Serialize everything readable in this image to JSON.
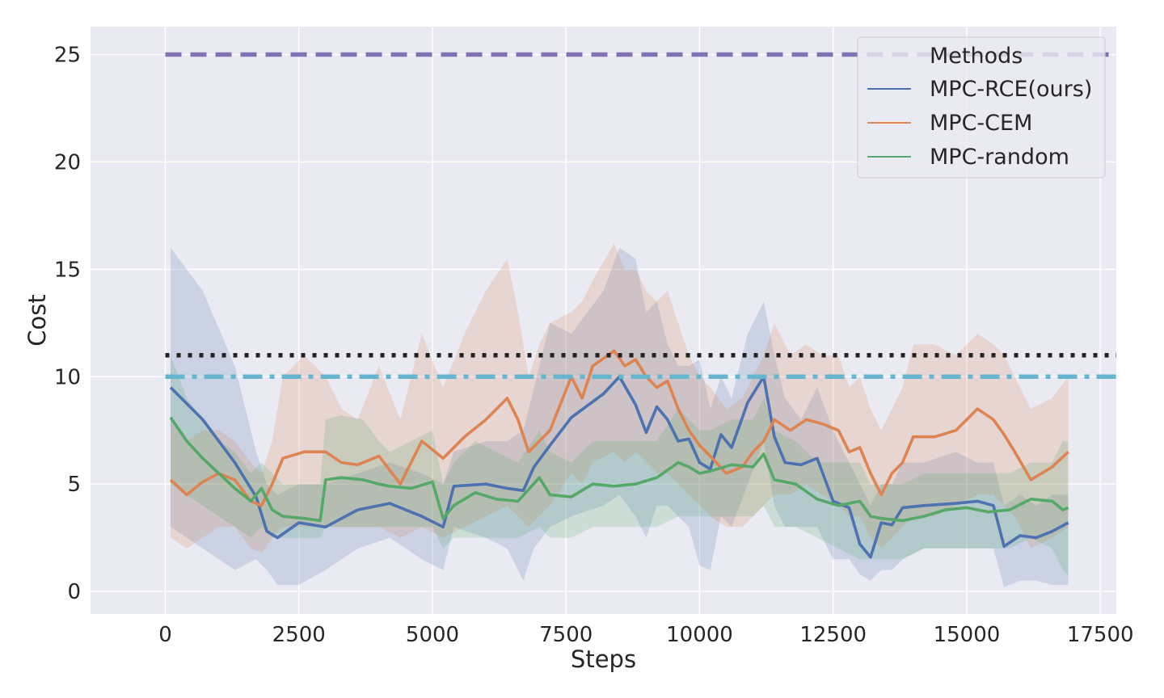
{
  "chart_data": {
    "type": "line",
    "xlabel": "Steps",
    "ylabel": "Cost",
    "xlim": [
      -1400,
      17800
    ],
    "ylim": [
      -1.05,
      26.3
    ],
    "xticks": [
      0,
      2500,
      5000,
      7500,
      10000,
      12500,
      15000,
      17500
    ],
    "yticks": [
      0,
      5,
      10,
      15,
      20,
      25
    ],
    "grid": true,
    "legend": {
      "title": "Methods",
      "placement": "top-right"
    },
    "colors": {
      "background": "#eaeaf2",
      "grid": "#ffffff",
      "MPC-RCE(ours)": "#4c72b0",
      "MPC-CEM": "#dd8452",
      "MPC-random": "#55a868",
      "dashed": "#8172b3",
      "dotted": "#222222",
      "dashdot": "#64b5cd"
    },
    "reference_lines": [
      {
        "y": 25,
        "style": "dashed",
        "color": "#8172b3"
      },
      {
        "y": 11,
        "style": "dotted",
        "color": "#222222"
      },
      {
        "y": 10,
        "style": "dashdot",
        "color": "#64b5cd"
      }
    ],
    "series": [
      {
        "name": "MPC-RCE(ours)",
        "color": "#4c72b0",
        "x": [
          100,
          700,
          1300,
          1700,
          1900,
          2100,
          2500,
          3000,
          3600,
          4200,
          4800,
          5200,
          5400,
          6000,
          6400,
          6700,
          6900,
          7200,
          7600,
          8200,
          8500,
          8800,
          9000,
          9200,
          9400,
          9600,
          9800,
          10000,
          10200,
          10400,
          10600,
          10900,
          11200,
          11400,
          11600,
          11900,
          12200,
          12500,
          12800,
          13000,
          13200,
          13400,
          13600,
          13800,
          14200,
          14800,
          15200,
          15500,
          15700,
          16000,
          16300,
          16600,
          16900
        ],
        "mean": [
          9.5,
          8.0,
          6.0,
          4.4,
          2.8,
          2.5,
          3.2,
          3.0,
          3.8,
          4.1,
          3.5,
          3.0,
          4.9,
          5.0,
          4.8,
          4.7,
          5.8,
          6.8,
          8.1,
          9.2,
          10.0,
          8.7,
          7.4,
          8.6,
          8.0,
          7.0,
          7.1,
          6.0,
          5.7,
          7.3,
          6.7,
          8.8,
          10.0,
          7.2,
          6.0,
          5.9,
          6.2,
          4.2,
          3.9,
          2.2,
          1.6,
          3.2,
          3.1,
          3.9,
          4.0,
          4.1,
          4.2,
          4.0,
          2.1,
          2.6,
          2.5,
          2.8,
          3.2
        ],
        "upper": [
          16.0,
          14.0,
          10.5,
          6.5,
          5.0,
          4.5,
          5.0,
          5.0,
          5.5,
          6.0,
          5.5,
          5.0,
          6.5,
          7.0,
          7.0,
          7.5,
          9.5,
          12.5,
          12.0,
          14.0,
          16.0,
          15.5,
          13.0,
          13.5,
          11.5,
          10.5,
          10.5,
          10.8,
          8.5,
          10.0,
          9.0,
          12.0,
          13.5,
          11.0,
          9.0,
          8.0,
          9.5,
          7.5,
          6.0,
          5.0,
          4.0,
          5.0,
          5.0,
          6.0,
          6.0,
          6.5,
          6.0,
          6.0,
          4.0,
          4.5,
          4.0,
          4.5,
          4.5
        ],
        "lower": [
          3.0,
          2.0,
          1.0,
          1.5,
          1.0,
          0.3,
          0.3,
          1.0,
          2.0,
          2.5,
          1.5,
          1.0,
          3.0,
          2.5,
          2.0,
          0.5,
          2.0,
          3.0,
          3.5,
          4.0,
          4.5,
          3.5,
          2.5,
          4.0,
          4.0,
          3.5,
          3.0,
          1.2,
          1.0,
          3.5,
          3.0,
          5.0,
          7.0,
          4.0,
          3.0,
          3.0,
          3.0,
          1.5,
          1.5,
          0.8,
          0.5,
          1.0,
          1.0,
          1.5,
          2.0,
          2.0,
          2.0,
          2.0,
          0.2,
          0.5,
          0.5,
          0.3,
          0.3
        ]
      },
      {
        "name": "MPC-CEM",
        "color": "#dd8452",
        "x": [
          100,
          400,
          700,
          1000,
          1300,
          1600,
          1800,
          2000,
          2200,
          2600,
          3000,
          3300,
          3600,
          4000,
          4400,
          4800,
          5200,
          5600,
          6000,
          6400,
          6600,
          6800,
          7000,
          7200,
          7600,
          7800,
          8000,
          8400,
          8600,
          8800,
          9000,
          9200,
          9400,
          9600,
          9800,
          10000,
          10200,
          10500,
          10800,
          11000,
          11200,
          11400,
          11700,
          12000,
          12300,
          12600,
          12800,
          13000,
          13200,
          13400,
          13600,
          13800,
          14000,
          14400,
          14800,
          15200,
          15500,
          15700,
          15900,
          16200,
          16600,
          16900
        ],
        "mean": [
          5.2,
          4.5,
          5.1,
          5.5,
          5.2,
          4.2,
          4.0,
          5.0,
          6.2,
          6.5,
          6.5,
          6.0,
          5.9,
          6.3,
          5.0,
          7.0,
          6.2,
          7.2,
          8.0,
          9.0,
          8.0,
          6.5,
          7.0,
          7.5,
          10.0,
          9.0,
          10.5,
          11.2,
          10.5,
          10.8,
          10.0,
          9.5,
          9.8,
          8.5,
          7.5,
          6.8,
          6.3,
          5.5,
          5.8,
          6.5,
          7.0,
          8.0,
          7.5,
          8.0,
          7.8,
          7.5,
          6.5,
          6.7,
          5.5,
          4.5,
          5.5,
          6.0,
          7.2,
          7.2,
          7.5,
          8.5,
          8.0,
          7.3,
          6.5,
          5.2,
          5.8,
          6.5
        ],
        "upper": [
          8.0,
          7.0,
          7.5,
          7.5,
          7.0,
          6.0,
          5.5,
          7.0,
          10.0,
          11.0,
          10.0,
          8.5,
          8.0,
          10.5,
          8.0,
          12.0,
          9.5,
          12.0,
          14.0,
          15.5,
          13.0,
          10.0,
          11.5,
          12.5,
          13.0,
          13.5,
          14.5,
          16.2,
          15.0,
          15.0,
          14.0,
          13.5,
          14.0,
          12.5,
          11.0,
          10.0,
          9.5,
          8.5,
          9.0,
          10.0,
          11.0,
          12.5,
          11.0,
          11.5,
          11.0,
          11.0,
          9.5,
          10.0,
          8.5,
          7.5,
          8.5,
          9.5,
          11.5,
          11.5,
          11.0,
          12.0,
          11.5,
          11.0,
          10.0,
          8.5,
          9.0,
          10.0
        ],
        "lower": [
          2.5,
          2.0,
          2.5,
          3.0,
          3.0,
          2.0,
          1.8,
          2.5,
          3.0,
          3.0,
          3.0,
          3.0,
          3.0,
          3.0,
          2.5,
          3.0,
          2.5,
          3.0,
          3.5,
          4.0,
          3.5,
          3.0,
          3.5,
          4.0,
          5.5,
          5.0,
          6.0,
          6.5,
          6.0,
          6.5,
          6.0,
          5.5,
          5.5,
          5.0,
          4.5,
          4.0,
          3.5,
          3.0,
          3.0,
          3.5,
          4.0,
          4.5,
          4.5,
          5.0,
          4.5,
          4.0,
          3.5,
          3.5,
          2.5,
          2.0,
          2.5,
          3.0,
          3.5,
          3.5,
          4.0,
          4.5,
          4.5,
          4.0,
          3.5,
          2.0,
          2.5,
          3.0
        ]
      },
      {
        "name": "MPC-random",
        "color": "#55a868",
        "x": [
          100,
          400,
          700,
          1000,
          1300,
          1600,
          1800,
          2000,
          2200,
          2600,
          2900,
          3000,
          3300,
          3700,
          4000,
          4200,
          4600,
          5000,
          5200,
          5400,
          5800,
          6200,
          6600,
          7000,
          7200,
          7600,
          8000,
          8400,
          8800,
          9200,
          9600,
          9800,
          10000,
          10200,
          10600,
          11000,
          11200,
          11400,
          11800,
          12200,
          12600,
          13000,
          13200,
          13400,
          13800,
          14200,
          14600,
          15000,
          15400,
          15800,
          16200,
          16600,
          16800,
          16900
        ],
        "mean": [
          8.1,
          7.0,
          6.2,
          5.5,
          4.8,
          4.2,
          4.8,
          3.8,
          3.5,
          3.4,
          3.3,
          5.2,
          5.3,
          5.2,
          5.0,
          4.9,
          4.8,
          5.1,
          3.4,
          4.0,
          4.6,
          4.3,
          4.2,
          5.3,
          4.5,
          4.4,
          5.0,
          4.9,
          5.0,
          5.3,
          6.0,
          5.8,
          5.5,
          5.6,
          5.9,
          5.8,
          6.4,
          5.2,
          5.0,
          4.3,
          4.0,
          4.2,
          3.5,
          3.4,
          3.3,
          3.5,
          3.8,
          3.9,
          3.7,
          3.8,
          4.3,
          4.2,
          3.8,
          3.9
        ],
        "upper": [
          11.0,
          9.0,
          8.0,
          7.0,
          6.5,
          5.5,
          6.0,
          5.5,
          5.0,
          5.0,
          5.0,
          8.0,
          8.2,
          8.0,
          7.0,
          6.5,
          7.0,
          7.5,
          5.0,
          6.0,
          7.0,
          6.5,
          6.0,
          7.5,
          6.5,
          6.0,
          7.0,
          7.0,
          7.0,
          7.0,
          8.5,
          8.0,
          7.5,
          7.5,
          8.0,
          8.0,
          9.0,
          7.5,
          7.0,
          6.0,
          6.0,
          6.0,
          5.0,
          5.0,
          5.0,
          5.5,
          5.5,
          5.5,
          5.5,
          5.5,
          6.0,
          6.0,
          7.0,
          7.0
        ],
        "lower": [
          5.0,
          4.5,
          4.0,
          3.5,
          3.0,
          2.5,
          3.0,
          2.5,
          2.5,
          2.5,
          2.5,
          3.0,
          3.0,
          3.0,
          3.0,
          3.0,
          3.0,
          3.0,
          2.0,
          2.5,
          2.5,
          2.5,
          2.5,
          3.0,
          2.5,
          2.5,
          3.0,
          3.0,
          3.0,
          3.0,
          3.5,
          3.5,
          3.5,
          3.5,
          3.5,
          3.5,
          4.0,
          3.0,
          3.0,
          2.5,
          2.0,
          1.5,
          1.5,
          1.5,
          1.5,
          2.0,
          2.0,
          2.0,
          2.0,
          2.0,
          2.5,
          2.0,
          1.0,
          0.7
        ]
      }
    ]
  }
}
